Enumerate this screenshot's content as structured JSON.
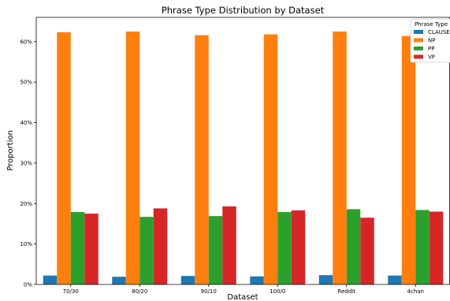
{
  "chart_data": {
    "type": "bar",
    "title": "Phrase Type Distribution by Dataset",
    "xlabel": "Dataset",
    "ylabel": "Proportion",
    "categories": [
      "70/30",
      "80/20",
      "90/10",
      "100/0",
      "Reddit",
      "4chan"
    ],
    "ylim": [
      0,
      0.66
    ],
    "yticks": [
      0,
      0.1,
      0.2,
      0.3,
      0.4,
      0.5,
      0.6
    ],
    "ytick_labels": [
      "0%",
      "10%",
      "20%",
      "30%",
      "40%",
      "50%",
      "60%"
    ],
    "grid": false,
    "legend": {
      "title": "Phrase Type",
      "position": "top-right"
    },
    "series": [
      {
        "name": "CLAUSE",
        "color": "#1f77b4",
        "values": [
          0.022,
          0.019,
          0.021,
          0.02,
          0.023,
          0.022
        ]
      },
      {
        "name": "NP",
        "color": "#ff7f0e",
        "values": [
          0.623,
          0.625,
          0.616,
          0.618,
          0.625,
          0.614
        ]
      },
      {
        "name": "PP",
        "color": "#2ca02c",
        "values": [
          0.179,
          0.167,
          0.169,
          0.179,
          0.186,
          0.184
        ]
      },
      {
        "name": "VP",
        "color": "#d62728",
        "values": [
          0.175,
          0.188,
          0.193,
          0.183,
          0.165,
          0.18
        ]
      }
    ]
  }
}
